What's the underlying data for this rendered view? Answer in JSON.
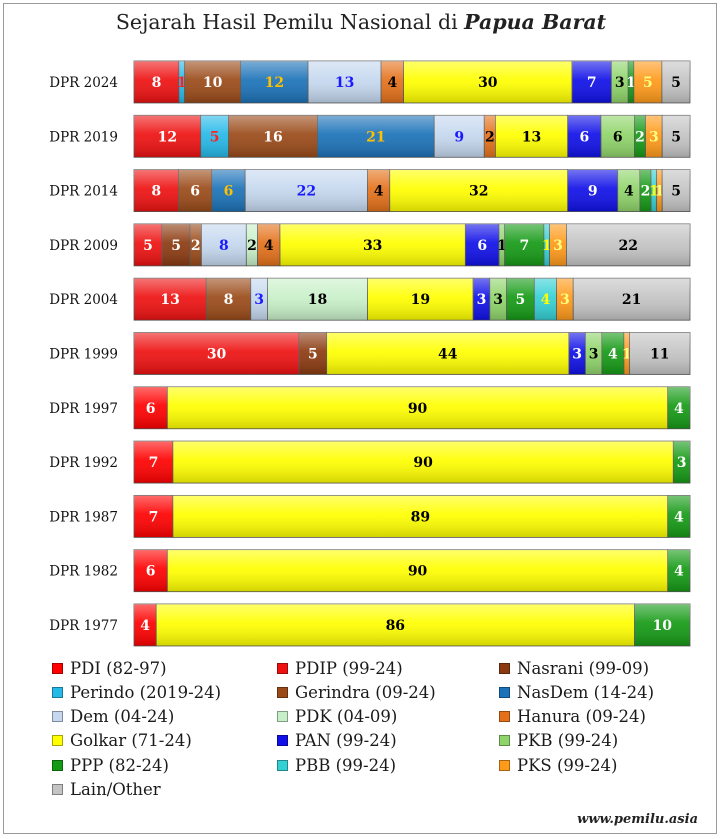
{
  "chart_data": {
    "type": "bar",
    "orientation": "horizontal",
    "stacked": true,
    "title": "Sejarah Hasil Pemilu Nasional di",
    "title_emphasis": "Papua Barat",
    "categories": [
      "DPR 2024",
      "DPR 2019",
      "DPR 2014",
      "DPR 2009",
      "DPR 2004",
      "DPR 1999",
      "DPR 1997",
      "DPR 1992",
      "DPR 1987",
      "DPR 1982",
      "DPR 1977"
    ],
    "series": [
      {
        "name": "PDI (82-97)",
        "color": "#ff0000",
        "label_color": "#ffffff",
        "values": [
          0,
          0,
          0,
          0,
          0,
          0,
          6,
          7,
          7,
          6,
          4
        ]
      },
      {
        "name": "PDIP (99-24)",
        "color": "#ee1111",
        "label_color": "#ffffff",
        "values": [
          8,
          12,
          8,
          5,
          13,
          30,
          0,
          0,
          0,
          0,
          0
        ]
      },
      {
        "name": "Nasrani (99-09)",
        "color": "#8b3a10",
        "label_color": "#ffffff",
        "values": [
          0,
          0,
          0,
          5,
          0,
          5,
          0,
          0,
          0,
          0,
          0
        ]
      },
      {
        "name": "Perindo (2019-24)",
        "color": "#25b9e8",
        "label_color": "#ff2020",
        "values": [
          1,
          5,
          0,
          0,
          0,
          0,
          0,
          0,
          0,
          0,
          0
        ]
      },
      {
        "name": "Gerindra (09-24)",
        "color": "#9a4a18",
        "label_color": "#ffffff",
        "values": [
          10,
          16,
          6,
          2,
          8,
          0,
          0,
          0,
          0,
          0,
          0
        ]
      },
      {
        "name": "NasDem (14-24)",
        "color": "#1b72b8",
        "label_color": "#ffc000",
        "values": [
          12,
          21,
          6,
          0,
          0,
          0,
          0,
          0,
          0,
          0,
          0
        ]
      },
      {
        "name": "Dem (04-24)",
        "color": "#c5d8ef",
        "label_color": "#1a1aff",
        "values": [
          13,
          9,
          22,
          8,
          3,
          0,
          0,
          0,
          0,
          0,
          0
        ]
      },
      {
        "name": "PDK (04-09)",
        "color": "#c8f0c8",
        "label_color": "#000000",
        "values": [
          0,
          0,
          0,
          2,
          18,
          0,
          0,
          0,
          0,
          0,
          0
        ]
      },
      {
        "name": "Hanura (09-24)",
        "color": "#e4711a",
        "label_color": "#000000",
        "values": [
          4,
          2,
          4,
          4,
          0,
          0,
          0,
          0,
          0,
          0,
          0
        ]
      },
      {
        "name": "Golkar (71-24)",
        "color": "#ffff00",
        "label_color": "#000000",
        "values": [
          30,
          13,
          32,
          33,
          19,
          44,
          90,
          90,
          89,
          90,
          86
        ]
      },
      {
        "name": "PAN (99-24)",
        "color": "#1010e8",
        "label_color": "#ffffff",
        "values": [
          7,
          6,
          9,
          6,
          3,
          3,
          0,
          0,
          0,
          0,
          0
        ]
      },
      {
        "name": "PKB (99-24)",
        "color": "#8fd46a",
        "label_color": "#000000",
        "values": [
          3,
          6,
          4,
          1,
          3,
          3,
          0,
          0,
          0,
          0,
          0
        ]
      },
      {
        "name": "PPP (82-24)",
        "color": "#159a15",
        "label_color": "#ffffff",
        "values": [
          1,
          2,
          2,
          7,
          5,
          4,
          4,
          3,
          4,
          4,
          10
        ]
      },
      {
        "name": "PBB (99-24)",
        "color": "#33d0d4",
        "label_color": "#ffff00",
        "values": [
          0,
          0,
          1,
          1,
          4,
          0,
          0,
          0,
          0,
          0,
          0
        ]
      },
      {
        "name": "PKS (99-24)",
        "color": "#ff9a1a",
        "label_color": "#ffff80",
        "values": [
          5,
          3,
          1,
          3,
          3,
          1,
          0,
          0,
          0,
          0,
          0
        ]
      },
      {
        "name": "Lain/Other",
        "color": "#c4c4c4",
        "label_color": "#000000",
        "values": [
          5,
          5,
          5,
          22,
          21,
          11,
          0,
          0,
          0,
          0,
          0
        ]
      }
    ],
    "xlim": [
      0,
      100
    ],
    "xlabel": "",
    "ylabel": "",
    "grid": false,
    "legend_position": "bottom"
  },
  "source": "www.pemilu.asia"
}
